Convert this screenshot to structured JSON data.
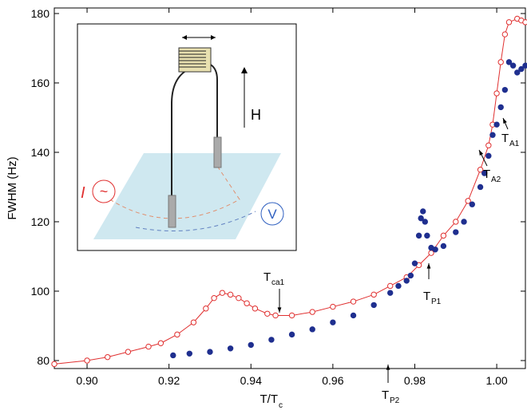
{
  "chart_data": {
    "type": "scatter",
    "x_label": {
      "main": "T/T",
      "sub": "c"
    },
    "y_label": "FWHM (Hz)",
    "xlim": [
      0.892,
      1.007
    ],
    "ylim": [
      77.7,
      181.6
    ],
    "xticks": [
      {
        "value": 0.9,
        "label": "0.90"
      },
      {
        "value": 0.92,
        "label": "0.92"
      },
      {
        "value": 0.94,
        "label": "0.94"
      },
      {
        "value": 0.96,
        "label": "0.96"
      },
      {
        "value": 0.98,
        "label": "0.98"
      },
      {
        "value": 1.0,
        "label": "1.00"
      }
    ],
    "yticks": [
      80,
      100,
      120,
      140,
      160,
      180
    ],
    "series": [
      {
        "color": "#e03030",
        "marker": "open",
        "x": [
          0.892,
          0.9,
          0.905,
          0.91,
          0.915,
          0.918,
          0.922,
          0.926,
          0.929,
          0.931,
          0.933,
          0.935,
          0.937,
          0.939,
          0.941,
          0.944,
          0.946,
          0.95,
          0.955,
          0.96,
          0.965,
          0.97,
          0.974,
          0.978,
          0.981,
          0.984,
          0.987,
          0.99,
          0.993,
          0.996,
          0.998,
          0.999,
          1.0,
          1.001,
          1.002,
          1.003,
          1.005,
          1.006,
          1.007
        ],
        "values": [
          79,
          80,
          81,
          82.5,
          84,
          85,
          87.5,
          91,
          95,
          98,
          99.5,
          99,
          98,
          96.5,
          95,
          93.5,
          93,
          93,
          94,
          95.5,
          97,
          99,
          101.5,
          104,
          107.5,
          111,
          116,
          120,
          126,
          135,
          142,
          148,
          157,
          166,
          174,
          177.5,
          178.5,
          178,
          177.5
        ]
      },
      {
        "color": "#1f2f8f",
        "marker": "filled",
        "x": [
          0.921,
          0.925,
          0.93,
          0.935,
          0.94,
          0.945,
          0.95,
          0.955,
          0.96,
          0.965,
          0.97,
          0.974,
          0.976,
          0.978,
          0.979,
          0.98,
          0.981,
          0.9815,
          0.982,
          0.9825,
          0.983,
          0.984,
          0.985,
          0.987,
          0.99,
          0.992,
          0.994,
          0.996,
          0.997,
          0.998,
          0.999,
          1.0,
          1.001,
          1.002,
          1.003,
          1.004,
          1.005,
          1.006,
          1.007
        ],
        "values": [
          81.5,
          82,
          82.5,
          83.5,
          84.5,
          86,
          87.5,
          89,
          91,
          93,
          96,
          99.5,
          101.5,
          103,
          104.5,
          108,
          116,
          121,
          123,
          120,
          116,
          112.5,
          112,
          113,
          117,
          120,
          125,
          130,
          134,
          139,
          145,
          148,
          153,
          158,
          166,
          165,
          163,
          164,
          165
        ]
      }
    ],
    "annotations": [
      {
        "label": "T",
        "sub": "ca1"
      },
      {
        "label": "T",
        "sub": "P2"
      },
      {
        "label": "T",
        "sub": "P1"
      },
      {
        "label": "T",
        "sub": "A2"
      },
      {
        "label": "T",
        "sub": "A1"
      }
    ],
    "inset": {
      "field_label": "H",
      "voltage_label": "V",
      "current_label": "I",
      "source_symbol": "~"
    }
  }
}
